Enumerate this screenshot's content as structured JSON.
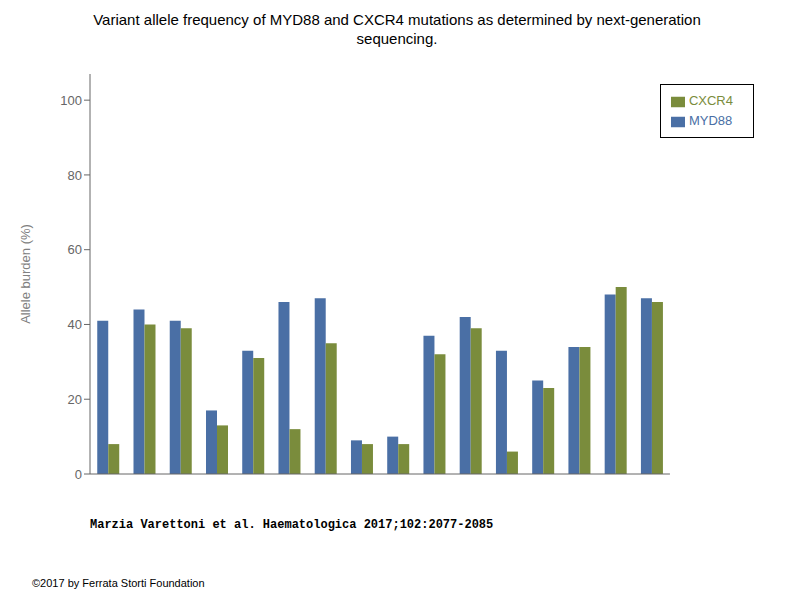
{
  "chart_data": {
    "type": "bar",
    "title": "Variant allele frequency of MYD88 and CXCR4 mutations as determined by next-generation\nsequencing.",
    "annotations": [
      "Marzia Varettoni et al. Haematologica 2017;102:2077-2085",
      "©2017 by Ferrata Storti Foundation"
    ],
    "y_label": "Allele burden (%)",
    "categories": [
      null,
      null,
      null,
      null,
      null,
      null,
      null,
      null,
      null,
      null,
      null,
      null,
      null,
      null,
      null,
      null
    ],
    "series": [
      {
        "name": "MYD88",
        "color": "#4a6fa5",
        "values": [
          41,
          44,
          41,
          17,
          33,
          46,
          47,
          9,
          10,
          37,
          42,
          33,
          25,
          34,
          48,
          47
        ]
      },
      {
        "name": "CXCR4",
        "color": "#7a8c3c",
        "values": [
          8,
          40,
          39,
          13,
          31,
          12,
          35,
          8,
          8,
          32,
          39,
          6,
          23,
          34,
          50,
          46
        ]
      }
    ],
    "ylim": [
      0,
      107
    ],
    "yticks": [
      0,
      20,
      40,
      60,
      80,
      100
    ],
    "grid": false,
    "legend": "upper right",
    "tick_labels": "y"
  }
}
